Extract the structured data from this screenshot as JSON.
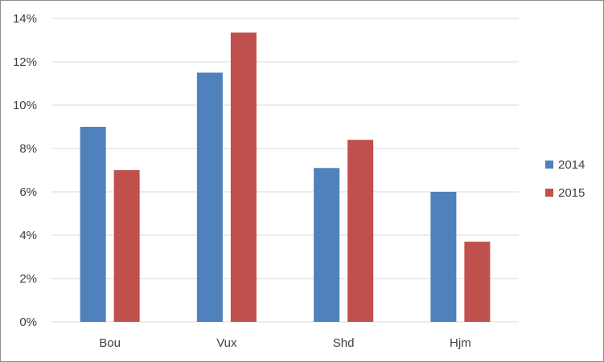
{
  "chart_data": {
    "type": "bar",
    "categories": [
      "Bou",
      "Vux",
      "Shd",
      "Hjm"
    ],
    "series": [
      {
        "name": "2014",
        "values": [
          9.0,
          11.5,
          7.1,
          6.0
        ],
        "color": "#4f81bd"
      },
      {
        "name": "2015",
        "values": [
          7.0,
          13.35,
          8.4,
          3.7
        ],
        "color": "#c0504d"
      }
    ],
    "y_ticks": [
      "0%",
      "2%",
      "4%",
      "6%",
      "8%",
      "10%",
      "12%",
      "14%"
    ],
    "ylim": [
      0,
      14
    ],
    "y_unit": "%",
    "grid": true,
    "legend_position": "right",
    "gridline_color": "#d9d9d9"
  }
}
